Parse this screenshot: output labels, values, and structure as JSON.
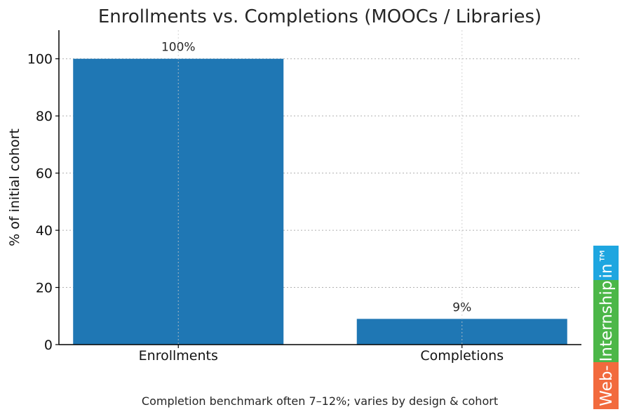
{
  "chart_data": {
    "type": "bar",
    "title": "Enrollments vs. Completions (MOOCs / Libraries)",
    "xlabel": "",
    "ylabel": "% of initial cohort",
    "categories": [
      "Enrollments",
      "Completions"
    ],
    "values": [
      100,
      9
    ],
    "data_labels": [
      "100%",
      "9%"
    ],
    "ylim": [
      0,
      110
    ],
    "yticks": [
      0,
      20,
      40,
      60,
      80,
      100
    ],
    "grid": true,
    "bar_color": "#1f77b4",
    "footnote": "Completion benchmark often 7–12%; varies by design & cohort"
  },
  "watermark": {
    "segments": [
      {
        "text": "Web-",
        "color": "#f26a3d"
      },
      {
        "text": "Internship",
        "color": "#4cb748"
      },
      {
        "text": "in™",
        "color": "#1ea6e0"
      }
    ]
  }
}
